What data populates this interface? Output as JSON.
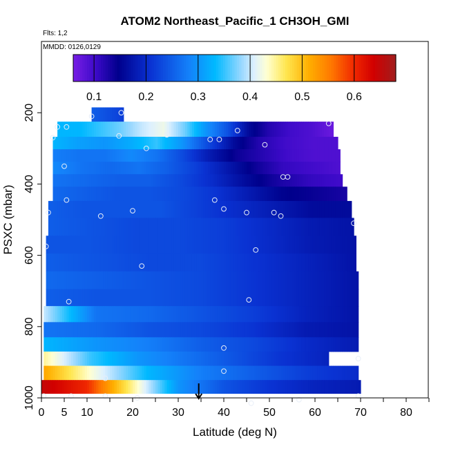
{
  "chart_data": {
    "type": "heatmap",
    "title": "ATOM2 Northeast_Pacific_1 CH3OH_GMI",
    "notes": [
      "Flts: 1,2",
      "MMDD: 0126,0129"
    ],
    "xlabel": "Latitude (deg N)",
    "ylabel": "PSXC (mbar)",
    "xlim": [
      0,
      85
    ],
    "ylim": [
      1000,
      0
    ],
    "x_ticks": [
      0,
      5,
      10,
      20,
      30,
      40,
      50,
      60,
      70,
      80
    ],
    "y_ticks": [
      200,
      400,
      600,
      800,
      1000
    ],
    "colorbar": {
      "range": [
        0.06,
        0.68
      ],
      "ticks": [
        0.1,
        0.2,
        0.3,
        0.4,
        0.5,
        0.6
      ],
      "tick_labels": [
        "0.1",
        "0.2",
        "0.3",
        "0.4",
        "0.5",
        "0.6"
      ]
    },
    "rows": [
      {
        "p": 200,
        "x0": 11,
        "x1": 18,
        "v": [
          0.25,
          0.22
        ]
      },
      {
        "p": 250,
        "x0": 3.5,
        "x1": 64,
        "v": [
          0.33,
          0.33,
          0.35,
          0.37,
          0.4,
          0.42,
          0.37,
          0.3,
          0.24,
          0.16,
          0.12,
          0.1,
          0.09,
          0.07
        ]
      },
      {
        "p": 285,
        "x0": 2.5,
        "x1": 65,
        "v": [
          0.33,
          0.31,
          0.3,
          0.32,
          0.35,
          0.3,
          0.23,
          0.16,
          0.12,
          0.1,
          0.09,
          0.09
        ]
      },
      {
        "p": 320,
        "x0": 2.5,
        "x1": 65.5,
        "v": [
          0.28,
          0.27,
          0.27,
          0.29,
          0.27,
          0.23,
          0.18,
          0.14,
          0.12,
          0.1,
          0.09,
          0.09
        ]
      },
      {
        "p": 355,
        "x0": 2.5,
        "x1": 65.5,
        "v": [
          0.29,
          0.27,
          0.26,
          0.27,
          0.25,
          0.22,
          0.18,
          0.14,
          0.11,
          0.1,
          0.09
        ]
      },
      {
        "p": 390,
        "x0": 2.5,
        "x1": 66,
        "v": [
          0.27,
          0.26,
          0.25,
          0.25,
          0.23,
          0.2,
          0.16,
          0.13,
          0.11,
          0.1
        ]
      },
      {
        "p": 425,
        "x0": 2.5,
        "x1": 67,
        "v": [
          0.26,
          0.25,
          0.24,
          0.24,
          0.23,
          0.21,
          0.18,
          0.15,
          0.14,
          0.13
        ]
      },
      {
        "p": 470,
        "x0": 1.5,
        "x1": 68,
        "v": [
          0.25,
          0.24,
          0.24,
          0.24,
          0.22,
          0.2,
          0.18,
          0.16,
          0.16
        ]
      },
      {
        "p": 520,
        "x0": 1.5,
        "x1": 68.5,
        "v": [
          0.25,
          0.24,
          0.23,
          0.23,
          0.22,
          0.2,
          0.18,
          0.17
        ]
      },
      {
        "p": 570,
        "x0": 1,
        "x1": 69,
        "v": [
          0.24,
          0.24,
          0.23,
          0.23,
          0.22,
          0.2,
          0.18,
          0.17
        ]
      },
      {
        "p": 620,
        "x0": 1,
        "x1": 69,
        "v": [
          0.25,
          0.24,
          0.23,
          0.23,
          0.21,
          0.19,
          0.17
        ]
      },
      {
        "p": 670,
        "x0": 1,
        "x1": 69.5,
        "v": [
          0.26,
          0.25,
          0.24,
          0.23,
          0.21,
          0.19,
          0.17
        ]
      },
      {
        "p": 720,
        "x0": 1,
        "x1": 69.5,
        "v": [
          0.25,
          0.24,
          0.24,
          0.23,
          0.21,
          0.19,
          0.17
        ]
      },
      {
        "p": 765,
        "x0": 0.5,
        "x1": 69.5,
        "v": [
          0.4,
          0.27,
          0.26,
          0.24,
          0.22,
          0.19,
          0.17
        ]
      },
      {
        "p": 810,
        "x0": 0.5,
        "x1": 69.5,
        "v": [
          0.27,
          0.26,
          0.24,
          0.23,
          0.21,
          0.18,
          0.17
        ]
      },
      {
        "p": 850,
        "x0": 0.5,
        "x1": 69.5,
        "v": [
          0.33,
          0.3,
          0.28,
          0.25,
          0.23,
          0.2,
          0.18
        ]
      },
      {
        "p": 890,
        "x0": 0.5,
        "x1": 63,
        "v": [
          0.45,
          0.35,
          0.3,
          0.27,
          0.24,
          0.21,
          0.19
        ]
      },
      {
        "p": 930,
        "x0": 0.5,
        "x1": 69.5,
        "v": [
          0.52,
          0.42,
          0.33,
          0.28,
          0.25,
          0.22,
          0.2
        ]
      },
      {
        "p": 970,
        "x0": 0,
        "x1": 70,
        "v": [
          0.65,
          0.6,
          0.45,
          0.3,
          0.24,
          0.21,
          0.19,
          0.18
        ]
      }
    ],
    "points": [
      [
        11,
        210
      ],
      [
        17.5,
        200
      ],
      [
        3.5,
        240
      ],
      [
        5.5,
        240
      ],
      [
        63,
        230
      ],
      [
        43,
        250
      ],
      [
        2.5,
        270
      ],
      [
        17,
        265
      ],
      [
        23,
        300
      ],
      [
        27.5,
        262
      ],
      [
        37,
        275
      ],
      [
        39,
        275
      ],
      [
        49,
        290
      ],
      [
        5,
        350
      ],
      [
        53,
        380
      ],
      [
        54,
        380
      ],
      [
        5.5,
        445
      ],
      [
        38,
        445
      ],
      [
        40,
        470
      ],
      [
        1.5,
        480
      ],
      [
        13,
        490
      ],
      [
        20,
        475
      ],
      [
        45,
        480
      ],
      [
        51,
        480
      ],
      [
        52.5,
        490
      ],
      [
        68.5,
        510
      ],
      [
        1,
        575
      ],
      [
        47,
        585
      ],
      [
        22,
        630
      ],
      [
        6,
        730
      ],
      [
        45.5,
        725
      ],
      [
        40,
        860
      ],
      [
        69.5,
        890
      ],
      [
        40,
        925
      ],
      [
        14,
        945
      ],
      [
        0.5,
        995
      ],
      [
        6.5,
        995
      ],
      [
        14,
        995
      ],
      [
        21,
        1000
      ],
      [
        46,
        1015
      ],
      [
        56.5,
        1005
      ],
      [
        69.5,
        995
      ]
    ],
    "marker": {
      "x": 34.5,
      "p": 1000
    }
  }
}
